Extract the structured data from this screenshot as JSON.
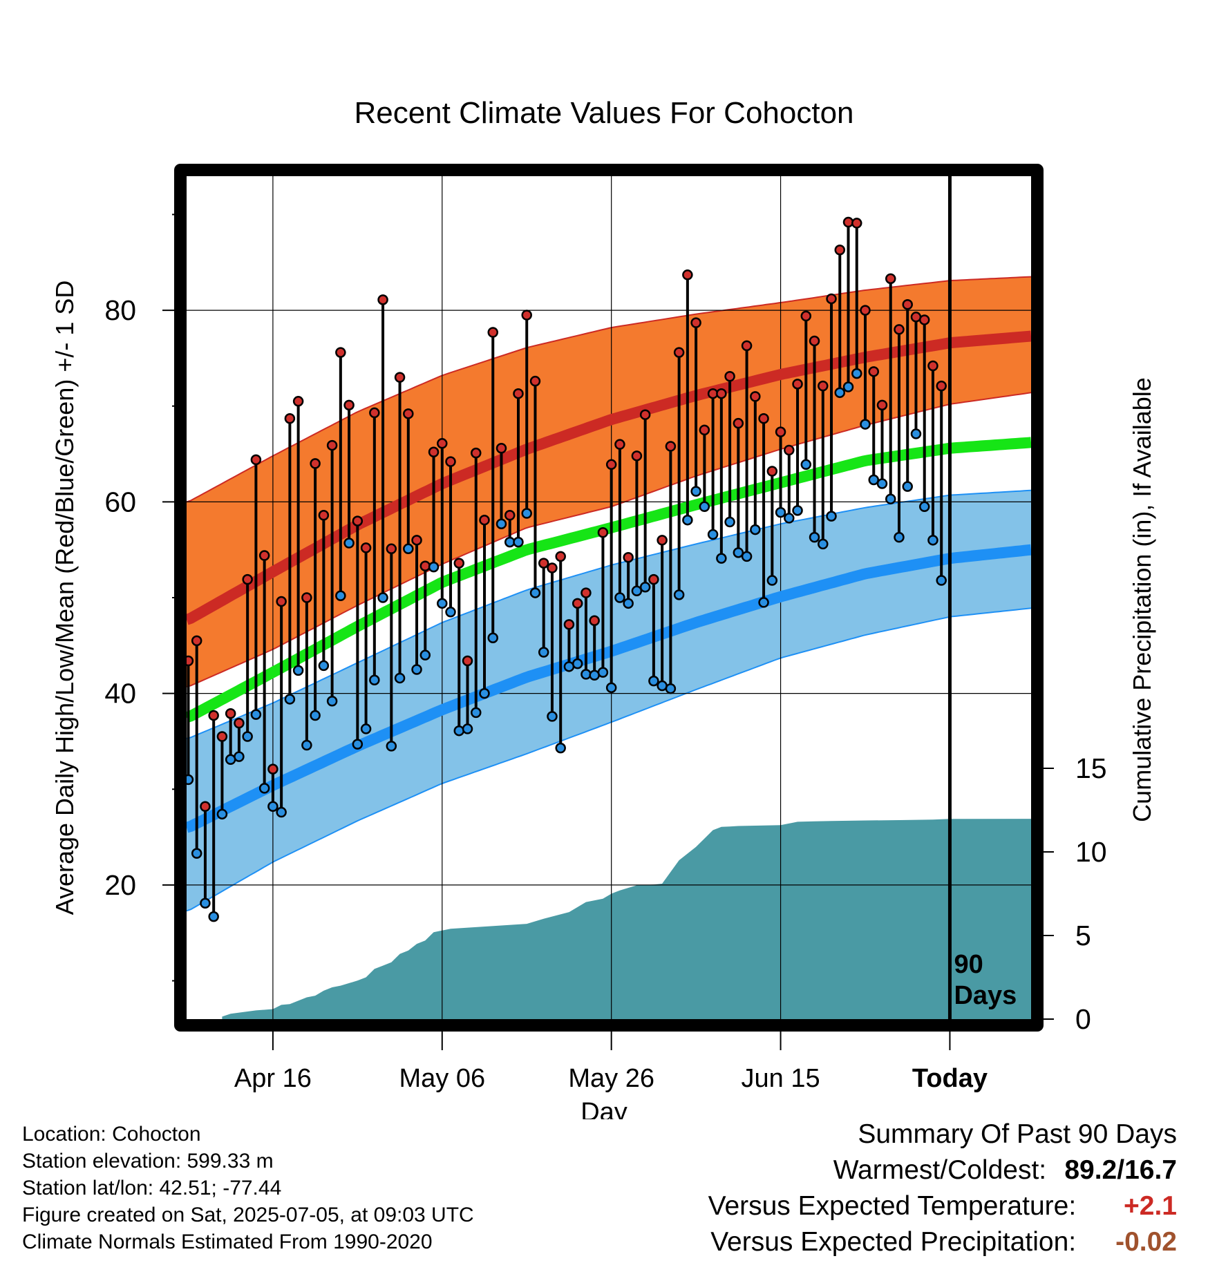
{
  "title": "Recent Climate Values For Cohocton",
  "chart_data": {
    "type": "line",
    "title": "Recent Climate Values For Cohocton",
    "xlabel": "Day",
    "ylabel": "Average Daily High/Low/Mean (Red/Blue/Green) +/- 1 SD",
    "y2label": "Cumulative Precipitation (in), If Available",
    "x_tick_labels": [
      "Apr 16",
      "May 06",
      "May 26",
      "Jun 15",
      "Today"
    ],
    "x_tick_days": [
      10,
      30,
      50,
      70,
      90
    ],
    "xlim_days": [
      -0.2,
      99.6
    ],
    "ylim": [
      6,
      94
    ],
    "y_ticks": [
      20,
      40,
      60,
      80
    ],
    "y2_ticks": [
      0,
      5,
      10,
      15
    ],
    "y2lim": [
      0,
      17
    ],
    "today_line_day": 90,
    "today_label": "90\nDays",
    "grid": true,
    "colors": {
      "high": "#cc2a24",
      "high_band": "#f47a2e",
      "low": "#1e90f5",
      "low_band": "#83c2e8",
      "mean": "#16e516",
      "precip": "#4a9aa4",
      "marker_high": "#d0312d",
      "marker_low": "#2a8fe0"
    },
    "normal_high": {
      "days": [
        0,
        10,
        20,
        30,
        40,
        50,
        60,
        70,
        80,
        90,
        99.6
      ],
      "values": [
        47.7,
        52.7,
        57.6,
        61.9,
        65.5,
        68.6,
        71.1,
        73.3,
        75.1,
        76.6,
        77.3
      ]
    },
    "normal_high_sd_upper": {
      "days": [
        0,
        10,
        20,
        30,
        40,
        50,
        60,
        70,
        80,
        90,
        99.6
      ],
      "values": [
        60.0,
        64.8,
        69.4,
        73.2,
        76.1,
        78.2,
        79.6,
        80.8,
        82.1,
        83.1,
        83.5
      ]
    },
    "normal_high_sd_lower": {
      "days": [
        0,
        10,
        20,
        30,
        40,
        50,
        60,
        70,
        80,
        90,
        99.6
      ],
      "values": [
        40.7,
        44.6,
        49.2,
        53.5,
        57.3,
        59.5,
        62.7,
        65.5,
        68.0,
        70.2,
        71.4
      ]
    },
    "normal_mean": {
      "days": [
        0,
        10,
        20,
        30,
        40,
        50,
        60,
        70,
        80,
        90,
        99.6
      ],
      "values": [
        37.5,
        42.2,
        47.0,
        51.6,
        55.0,
        57.3,
        59.7,
        62.0,
        64.3,
        65.6,
        66.2
      ]
    },
    "normal_low": {
      "days": [
        0,
        10,
        20,
        30,
        40,
        50,
        60,
        70,
        80,
        90,
        99.6
      ],
      "values": [
        26.0,
        30.4,
        34.5,
        38.3,
        41.7,
        44.4,
        47.4,
        50.1,
        52.5,
        54.1,
        55.0
      ]
    },
    "normal_low_sd_upper": {
      "days": [
        0,
        10,
        20,
        30,
        40,
        50,
        60,
        70,
        80,
        90,
        99.6
      ],
      "values": [
        35.3,
        39.0,
        43.2,
        47.4,
        50.8,
        53.4,
        55.6,
        57.7,
        59.4,
        60.7,
        61.2
      ]
    },
    "normal_low_sd_lower": {
      "days": [
        0,
        10,
        20,
        30,
        40,
        50,
        60,
        70,
        80,
        90,
        99.6
      ],
      "values": [
        17.3,
        22.4,
        26.7,
        30.6,
        33.7,
        37.0,
        40.4,
        43.7,
        46.1,
        48.0,
        48.9
      ]
    },
    "daily_high": [
      43.4,
      45.5,
      28.2,
      37.7,
      35.5,
      37.9,
      36.9,
      51.9,
      64.4,
      54.4,
      32.1,
      49.6,
      68.7,
      70.5,
      50.0,
      64.0,
      58.6,
      65.9,
      75.6,
      70.1,
      58.0,
      55.2,
      69.3,
      81.1,
      55.1,
      73.0,
      69.2,
      56.0,
      53.3,
      65.2,
      66.1,
      64.2,
      53.6,
      43.4,
      65.1,
      58.1,
      77.7,
      65.6,
      58.6,
      71.3,
      79.5,
      72.6,
      53.6,
      53.1,
      54.3,
      47.2,
      49.4,
      50.5,
      47.6,
      56.8,
      63.9,
      66.0,
      54.2,
      64.8,
      69.1,
      51.9,
      56.0,
      65.8,
      75.6,
      83.7,
      78.7,
      67.5,
      71.3,
      71.3,
      73.1,
      68.2,
      76.3,
      71.0,
      68.7,
      63.2,
      67.3,
      65.4,
      72.3,
      79.4,
      76.8,
      72.1,
      81.2,
      86.3,
      89.2,
      89.1,
      80.0,
      73.6,
      70.1,
      83.3,
      78.0,
      80.6,
      79.3,
      79.0,
      74.2,
      72.1
    ],
    "daily_low": [
      31.0,
      23.3,
      18.1,
      16.7,
      27.4,
      33.1,
      33.4,
      35.5,
      37.8,
      30.1,
      28.2,
      27.6,
      39.4,
      42.4,
      34.6,
      37.7,
      42.9,
      39.2,
      50.2,
      55.7,
      34.7,
      36.3,
      41.4,
      50.0,
      34.5,
      41.6,
      55.1,
      42.5,
      44.0,
      53.2,
      49.4,
      48.5,
      36.1,
      36.3,
      38.0,
      40.0,
      45.8,
      57.7,
      55.8,
      55.8,
      58.8,
      50.5,
      44.3,
      37.6,
      34.3,
      42.8,
      43.1,
      42.0,
      41.9,
      42.2,
      40.6,
      50.0,
      49.4,
      50.7,
      51.1,
      41.3,
      40.8,
      40.5,
      50.3,
      58.1,
      61.1,
      59.5,
      56.6,
      54.1,
      57.9,
      54.7,
      54.3,
      57.1,
      49.5,
      51.8,
      58.9,
      58.3,
      59.1,
      63.9,
      56.3,
      55.6,
      58.5,
      71.4,
      72.0,
      73.4,
      68.1,
      62.3,
      61.9,
      60.3,
      56.3,
      61.6,
      67.1,
      59.5,
      56.0,
      51.8
    ],
    "cumulative_precip": {
      "days": [
        4,
        5,
        8,
        10,
        11,
        12,
        13,
        14,
        15,
        16,
        17,
        18,
        20,
        21,
        22,
        23,
        24,
        25,
        26,
        27,
        28,
        29,
        30,
        31,
        40,
        42,
        45,
        46,
        47,
        49,
        50,
        51,
        52,
        53,
        55,
        56,
        58,
        60,
        61,
        62,
        63,
        64,
        65,
        70,
        72,
        74,
        76,
        80,
        84,
        88,
        89,
        90,
        99.6
      ],
      "values": [
        0.15,
        0.32,
        0.52,
        0.6,
        0.85,
        0.9,
        1.1,
        1.3,
        1.4,
        1.7,
        1.9,
        2.0,
        2.3,
        2.5,
        3.0,
        3.2,
        3.4,
        3.9,
        4.1,
        4.5,
        4.7,
        5.2,
        5.3,
        5.4,
        5.7,
        6.0,
        6.4,
        6.7,
        7.0,
        7.2,
        7.5,
        7.7,
        7.85,
        8.0,
        8.05,
        8.1,
        9.5,
        10.3,
        10.8,
        11.3,
        11.5,
        11.52,
        11.55,
        11.6,
        11.8,
        11.83,
        11.85,
        11.88,
        11.9,
        11.93,
        11.95,
        11.97,
        11.98
      ]
    }
  },
  "footer": {
    "location": "Location: Cohocton",
    "elevation": "Station elevation: 599.33 m",
    "latlon": "Station lat/lon: 42.51; -77.44",
    "created": "Figure created on Sat, 2025-07-05, at 09:03 UTC",
    "normals": "Climate Normals Estimated From 1990-2020"
  },
  "summary": {
    "heading": "Summary Of Past 90 Days",
    "warmest_coldest_label": "Warmest/Coldest:",
    "warmest_coldest_value": "89.2/16.7",
    "temp_label": "Versus Expected Temperature:",
    "temp_value": "+2.1",
    "precip_label": "Versus Expected Precipitation:",
    "precip_value": "-0.02"
  }
}
